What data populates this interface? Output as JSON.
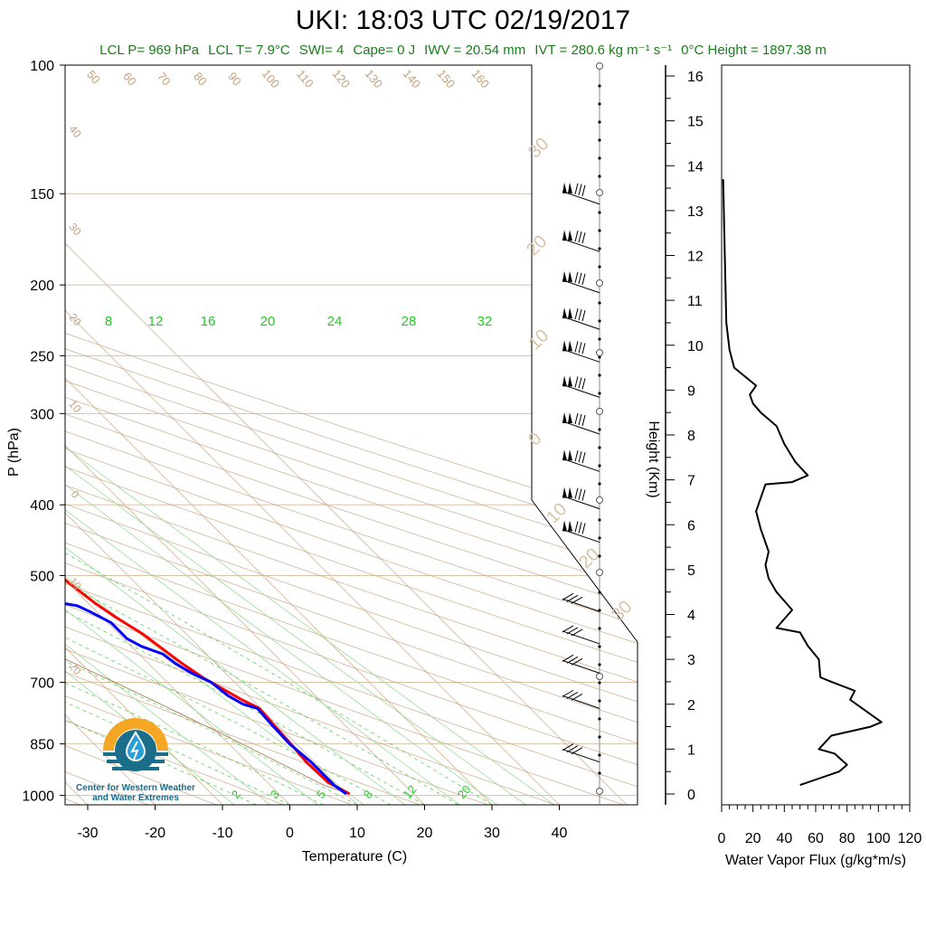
{
  "header": {
    "title": "UKI: 18:03 UTC 02/19/2017",
    "summary": [
      {
        "label": "LCL P=",
        "value": "969 hPa"
      },
      {
        "label": "LCL T=",
        "value": "7.9°C"
      },
      {
        "label": "SWI=",
        "value": "4"
      },
      {
        "label": "Cape=",
        "value": "0 J"
      },
      {
        "label": "IWV =",
        "value": "20.54 mm"
      },
      {
        "label": "IVT =",
        "value": "280.6 kg m⁻¹ s⁻¹"
      },
      {
        "label": "0°C Height =",
        "value": "1897.38 m"
      }
    ]
  },
  "logo": {
    "line1": "Center for Western Weather",
    "line2": "and Water Extremes",
    "colors": {
      "sun": "#f5a623",
      "water": "#1b6e8a",
      "drop": "#2a9fd6"
    }
  },
  "colors": {
    "temperature": "#ff0000",
    "dewpoint": "#0000ff",
    "isotherm": "#d9c2a8",
    "mixing_ratio": "#33cc33",
    "dry_adiabat": "#c8a07a",
    "wind": "#000000",
    "flux": "#000000"
  },
  "chart_data": [
    {
      "type": "line",
      "name": "skew-t",
      "xlabel": "Temperature (C)",
      "ylabel": "P (hPa)",
      "xlim": [
        -35,
        50
      ],
      "ylim": [
        1030,
        100
      ],
      "x_ticks": [
        -30,
        -20,
        -10,
        0,
        10,
        20,
        30,
        40
      ],
      "y_ticks": [
        100,
        150,
        200,
        250,
        300,
        400,
        500,
        700,
        850,
        1000
      ],
      "mixing_ratio_labels": [
        "2",
        "3",
        "5",
        "8",
        "12",
        "20"
      ],
      "mixing_ratio_top_labels": [
        "8",
        "12",
        "16",
        "20",
        "24",
        "28",
        "32"
      ],
      "dry_adiabat_labels": [
        "50",
        "60",
        "70",
        "80",
        "90",
        "100",
        "110",
        "120",
        "130",
        "140",
        "150",
        "160"
      ],
      "left_labels": [
        "40",
        "30",
        "20",
        "10",
        "0",
        "10",
        "20"
      ],
      "right_labels": [
        "30",
        "20",
        "10",
        "0",
        "10",
        "20",
        "30"
      ],
      "series": [
        {
          "name": "temperature",
          "points": [
            [
              10.5,
              995
            ],
            [
              9,
              960
            ],
            [
              8.8,
              900
            ],
            [
              9.2,
              850
            ],
            [
              9.5,
              800
            ],
            [
              9.8,
              760
            ],
            [
              8.5,
              740
            ],
            [
              7.5,
              720
            ],
            [
              6,
              690
            ],
            [
              5,
              660
            ],
            [
              4.5,
              640
            ],
            [
              3.5,
              600
            ],
            [
              2,
              570
            ],
            [
              1,
              545
            ],
            [
              0.5,
              525
            ],
            [
              0,
              505
            ],
            [
              0.2,
              490
            ],
            [
              1.2,
              475
            ],
            [
              2,
              460
            ],
            [
              2.5,
              445
            ],
            [
              1.5,
              430
            ],
            [
              3,
              410
            ],
            [
              2.5,
              395
            ],
            [
              1.5,
              380
            ],
            [
              0,
              360
            ],
            [
              0.5,
              340
            ],
            [
              0,
              325
            ],
            [
              -0.5,
              310
            ],
            [
              0,
              300
            ],
            [
              1,
              290
            ],
            [
              3,
              285
            ],
            [
              3.5,
              275
            ],
            [
              4,
              262
            ],
            [
              4.5,
              250
            ],
            [
              5,
              240
            ],
            [
              6,
              230
            ],
            [
              5.2,
              220
            ],
            [
              4,
              210
            ],
            [
              4,
              200
            ],
            [
              5,
              193
            ],
            [
              5.5,
              185
            ],
            [
              5.5,
              175
            ],
            [
              5.5,
              165
            ],
            [
              6,
              158
            ],
            [
              6,
              152
            ],
            [
              5.8,
              150
            ]
          ]
        },
        {
          "name": "dewpoint",
          "points": [
            [
              10,
              995
            ],
            [
              9.5,
              970
            ],
            [
              9.5,
              900
            ],
            [
              9,
              850
            ],
            [
              9.2,
              800
            ],
            [
              9.5,
              760
            ],
            [
              8,
              750
            ],
            [
              7,
              730
            ],
            [
              6.5,
              700
            ],
            [
              5,
              680
            ],
            [
              4,
              660
            ],
            [
              3.5,
              640
            ],
            [
              1.5,
              625
            ],
            [
              0.5,
              610
            ],
            [
              0.5,
              580
            ],
            [
              -1,
              560
            ],
            [
              -2,
              550
            ],
            [
              -4,
              545
            ],
            [
              -6,
              540
            ],
            [
              -8,
              540
            ],
            [
              -8,
              525
            ],
            [
              -4,
              525
            ],
            [
              -3,
              510
            ],
            [
              -2,
              500
            ],
            [
              -3,
              480
            ],
            [
              -6,
              470
            ],
            [
              -9,
              465
            ],
            [
              -10,
              455
            ],
            [
              -8,
              445
            ],
            [
              -4,
              435
            ],
            [
              -1,
              425
            ],
            [
              1,
              410
            ],
            [
              0,
              400
            ],
            [
              -2,
              395
            ],
            [
              -3,
              380
            ],
            [
              -5,
              365
            ],
            [
              -4,
              345
            ],
            [
              -2,
              335
            ],
            [
              -4,
              330
            ],
            [
              -8,
              325
            ],
            [
              -10,
              322
            ],
            [
              -12,
              320
            ],
            [
              -10,
              315
            ],
            [
              -7,
              312
            ],
            [
              -9,
              305
            ],
            [
              -12,
              302
            ],
            [
              -9,
              298
            ],
            [
              -12,
              295
            ],
            [
              -10,
              288
            ],
            [
              -14,
              285
            ],
            [
              -16,
              278
            ],
            [
              -18,
              272
            ],
            [
              -20,
              270
            ],
            [
              -18,
              262
            ],
            [
              -20,
              255
            ],
            [
              -22,
              250
            ],
            [
              -21,
              240
            ],
            [
              -22,
              230
            ],
            [
              -22.5,
              220
            ],
            [
              -22,
              210
            ],
            [
              -22.5,
              205
            ],
            [
              -25,
              200
            ],
            [
              -25,
              190
            ],
            [
              -25,
              180
            ],
            [
              -25,
              170
            ],
            [
              -24,
              160
            ],
            [
              -23.5,
              152
            ],
            [
              -23.5,
              150
            ]
          ]
        }
      ]
    },
    {
      "type": "barbs",
      "name": "wind-barbs",
      "pressure_levels": [
        155,
        180,
        205,
        230,
        255,
        285,
        320,
        360,
        405,
        450,
        560,
        620,
        680,
        760,
        900
      ]
    },
    {
      "type": "line",
      "name": "water-vapor-flux",
      "xlabel": "Water Vapor Flux (g/kg*m/s)",
      "ylabel": "Height (Km)",
      "xlim": [
        0,
        120
      ],
      "ylim": [
        0,
        16.5
      ],
      "x_ticks": [
        0,
        20,
        40,
        60,
        80,
        100,
        120
      ],
      "y_ticks": [
        0,
        1,
        2,
        3,
        4,
        5,
        6,
        7,
        8,
        9,
        10,
        11,
        12,
        13,
        14,
        15,
        16
      ],
      "points": [
        [
          50,
          0.2
        ],
        [
          75,
          0.5
        ],
        [
          80,
          0.65
        ],
        [
          72,
          0.9
        ],
        [
          62,
          1.0
        ],
        [
          70,
          1.3
        ],
        [
          95,
          1.5
        ],
        [
          102,
          1.6
        ],
        [
          90,
          1.9
        ],
        [
          82,
          2.1
        ],
        [
          85,
          2.3
        ],
        [
          70,
          2.5
        ],
        [
          63,
          2.6
        ],
        [
          62,
          3.0
        ],
        [
          55,
          3.3
        ],
        [
          50,
          3.6
        ],
        [
          35,
          3.7
        ],
        [
          45,
          4.1
        ],
        [
          35,
          4.5
        ],
        [
          30,
          4.8
        ],
        [
          28,
          5.1
        ],
        [
          30,
          5.4
        ],
        [
          25,
          5.9
        ],
        [
          22,
          6.3
        ],
        [
          28,
          6.9
        ],
        [
          45,
          6.95
        ],
        [
          55,
          7.1
        ],
        [
          47,
          7.4
        ],
        [
          40,
          7.8
        ],
        [
          35,
          8.2
        ],
        [
          25,
          8.5
        ],
        [
          20,
          8.7
        ],
        [
          18,
          8.9
        ],
        [
          22,
          9.1
        ],
        [
          15,
          9.3
        ],
        [
          8,
          9.5
        ],
        [
          5,
          9.9
        ],
        [
          3,
          10.5
        ],
        [
          2,
          12
        ],
        [
          1,
          13.7
        ]
      ]
    }
  ]
}
